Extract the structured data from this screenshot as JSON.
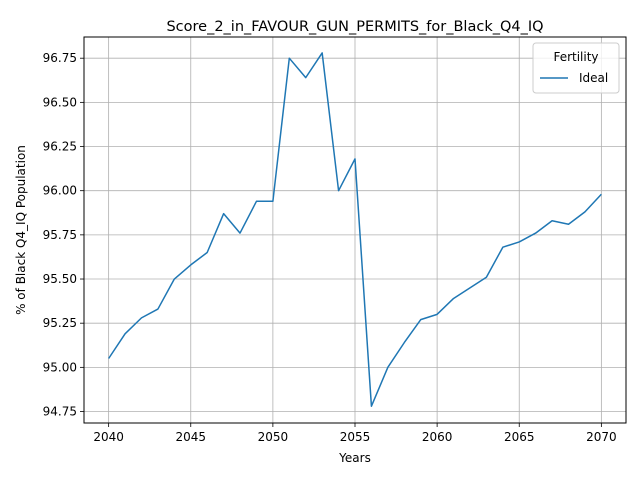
{
  "chart_data": {
    "type": "line",
    "title": "Score_2_in_FAVOUR_GUN_PERMITS_for_Black_Q4_IQ",
    "xlabel": "Years",
    "ylabel": "% of Black Q4_IQ Population",
    "xlim": [
      2038.5,
      2071.5
    ],
    "ylim": [
      94.685,
      96.87
    ],
    "xticks": [
      2040,
      2045,
      2050,
      2055,
      2060,
      2065,
      2070
    ],
    "yticks": [
      94.75,
      95.0,
      95.25,
      95.5,
      95.75,
      96.0,
      96.25,
      96.5,
      96.75
    ],
    "ytick_labels": [
      "94.75",
      "95.00",
      "95.25",
      "95.50",
      "95.75",
      "96.00",
      "96.25",
      "96.50",
      "96.75"
    ],
    "grid": true,
    "legend": {
      "title": "Fertility",
      "position": "top-right"
    },
    "series": [
      {
        "name": "Ideal",
        "color": "#1f77b4",
        "x": [
          2040,
          2041,
          2042,
          2043,
          2044,
          2045,
          2046,
          2047,
          2048,
          2049,
          2050,
          2051,
          2052,
          2053,
          2054,
          2055,
          2056,
          2057,
          2058,
          2059,
          2060,
          2061,
          2062,
          2063,
          2064,
          2065,
          2066,
          2067,
          2068,
          2069,
          2070
        ],
        "y": [
          95.05,
          95.19,
          95.28,
          95.33,
          95.5,
          95.58,
          95.65,
          95.87,
          95.76,
          95.94,
          95.94,
          96.75,
          96.64,
          96.78,
          96.0,
          96.18,
          94.78,
          95.0,
          95.14,
          95.27,
          95.3,
          95.39,
          95.45,
          95.51,
          95.68,
          95.71,
          95.76,
          95.83,
          95.81,
          95.88,
          95.98
        ]
      }
    ]
  }
}
